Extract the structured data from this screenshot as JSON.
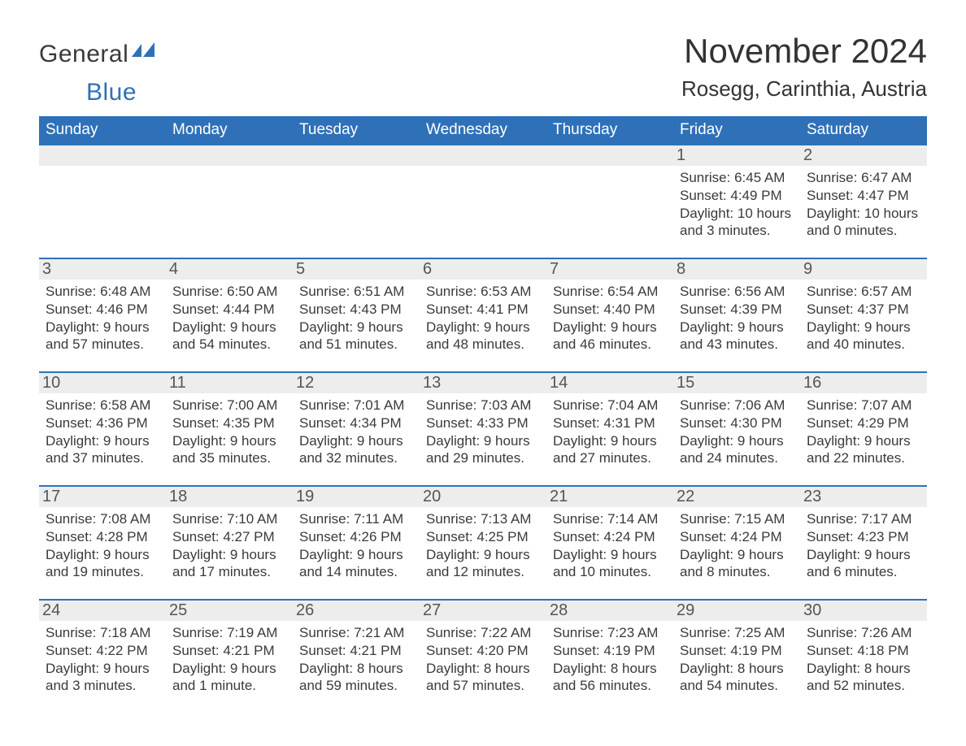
{
  "brand": {
    "word1": "General",
    "word2": "Blue"
  },
  "colors": {
    "accent": "#2f71b8",
    "header_bg": "#2f71b8",
    "header_text": "#ffffff",
    "daynum_bg": "#ededed",
    "daynum_text": "#555555",
    "body_text": "#3a3a3a",
    "page_bg": "#ffffff",
    "week_divider": "#2f71b8"
  },
  "typography": {
    "month_title_fontsize": 42,
    "location_fontsize": 26,
    "dow_fontsize": 19,
    "daynum_fontsize": 20,
    "body_fontsize": 17,
    "font_family": "Arial, Helvetica, sans-serif"
  },
  "title": "November 2024",
  "location": "Rosegg, Carinthia, Austria",
  "days_of_week": [
    "Sunday",
    "Monday",
    "Tuesday",
    "Wednesday",
    "Thursday",
    "Friday",
    "Saturday"
  ],
  "labels": {
    "sunrise": "Sunrise:",
    "sunset": "Sunset:",
    "daylight": "Daylight:"
  },
  "weeks": [
    [
      {
        "blank": true
      },
      {
        "blank": true
      },
      {
        "blank": true
      },
      {
        "blank": true
      },
      {
        "blank": true
      },
      {
        "n": "1",
        "sunrise": "6:45 AM",
        "sunset": "4:49 PM",
        "daylight": "10 hours and 3 minutes."
      },
      {
        "n": "2",
        "sunrise": "6:47 AM",
        "sunset": "4:47 PM",
        "daylight": "10 hours and 0 minutes."
      }
    ],
    [
      {
        "n": "3",
        "sunrise": "6:48 AM",
        "sunset": "4:46 PM",
        "daylight": "9 hours and 57 minutes."
      },
      {
        "n": "4",
        "sunrise": "6:50 AM",
        "sunset": "4:44 PM",
        "daylight": "9 hours and 54 minutes."
      },
      {
        "n": "5",
        "sunrise": "6:51 AM",
        "sunset": "4:43 PM",
        "daylight": "9 hours and 51 minutes."
      },
      {
        "n": "6",
        "sunrise": "6:53 AM",
        "sunset": "4:41 PM",
        "daylight": "9 hours and 48 minutes."
      },
      {
        "n": "7",
        "sunrise": "6:54 AM",
        "sunset": "4:40 PM",
        "daylight": "9 hours and 46 minutes."
      },
      {
        "n": "8",
        "sunrise": "6:56 AM",
        "sunset": "4:39 PM",
        "daylight": "9 hours and 43 minutes."
      },
      {
        "n": "9",
        "sunrise": "6:57 AM",
        "sunset": "4:37 PM",
        "daylight": "9 hours and 40 minutes."
      }
    ],
    [
      {
        "n": "10",
        "sunrise": "6:58 AM",
        "sunset": "4:36 PM",
        "daylight": "9 hours and 37 minutes."
      },
      {
        "n": "11",
        "sunrise": "7:00 AM",
        "sunset": "4:35 PM",
        "daylight": "9 hours and 35 minutes."
      },
      {
        "n": "12",
        "sunrise": "7:01 AM",
        "sunset": "4:34 PM",
        "daylight": "9 hours and 32 minutes."
      },
      {
        "n": "13",
        "sunrise": "7:03 AM",
        "sunset": "4:33 PM",
        "daylight": "9 hours and 29 minutes."
      },
      {
        "n": "14",
        "sunrise": "7:04 AM",
        "sunset": "4:31 PM",
        "daylight": "9 hours and 27 minutes."
      },
      {
        "n": "15",
        "sunrise": "7:06 AM",
        "sunset": "4:30 PM",
        "daylight": "9 hours and 24 minutes."
      },
      {
        "n": "16",
        "sunrise": "7:07 AM",
        "sunset": "4:29 PM",
        "daylight": "9 hours and 22 minutes."
      }
    ],
    [
      {
        "n": "17",
        "sunrise": "7:08 AM",
        "sunset": "4:28 PM",
        "daylight": "9 hours and 19 minutes."
      },
      {
        "n": "18",
        "sunrise": "7:10 AM",
        "sunset": "4:27 PM",
        "daylight": "9 hours and 17 minutes."
      },
      {
        "n": "19",
        "sunrise": "7:11 AM",
        "sunset": "4:26 PM",
        "daylight": "9 hours and 14 minutes."
      },
      {
        "n": "20",
        "sunrise": "7:13 AM",
        "sunset": "4:25 PM",
        "daylight": "9 hours and 12 minutes."
      },
      {
        "n": "21",
        "sunrise": "7:14 AM",
        "sunset": "4:24 PM",
        "daylight": "9 hours and 10 minutes."
      },
      {
        "n": "22",
        "sunrise": "7:15 AM",
        "sunset": "4:24 PM",
        "daylight": "9 hours and 8 minutes."
      },
      {
        "n": "23",
        "sunrise": "7:17 AM",
        "sunset": "4:23 PM",
        "daylight": "9 hours and 6 minutes."
      }
    ],
    [
      {
        "n": "24",
        "sunrise": "7:18 AM",
        "sunset": "4:22 PM",
        "daylight": "9 hours and 3 minutes."
      },
      {
        "n": "25",
        "sunrise": "7:19 AM",
        "sunset": "4:21 PM",
        "daylight": "9 hours and 1 minute."
      },
      {
        "n": "26",
        "sunrise": "7:21 AM",
        "sunset": "4:21 PM",
        "daylight": "8 hours and 59 minutes."
      },
      {
        "n": "27",
        "sunrise": "7:22 AM",
        "sunset": "4:20 PM",
        "daylight": "8 hours and 57 minutes."
      },
      {
        "n": "28",
        "sunrise": "7:23 AM",
        "sunset": "4:19 PM",
        "daylight": "8 hours and 56 minutes."
      },
      {
        "n": "29",
        "sunrise": "7:25 AM",
        "sunset": "4:19 PM",
        "daylight": "8 hours and 54 minutes."
      },
      {
        "n": "30",
        "sunrise": "7:26 AM",
        "sunset": "4:18 PM",
        "daylight": "8 hours and 52 minutes."
      }
    ]
  ]
}
